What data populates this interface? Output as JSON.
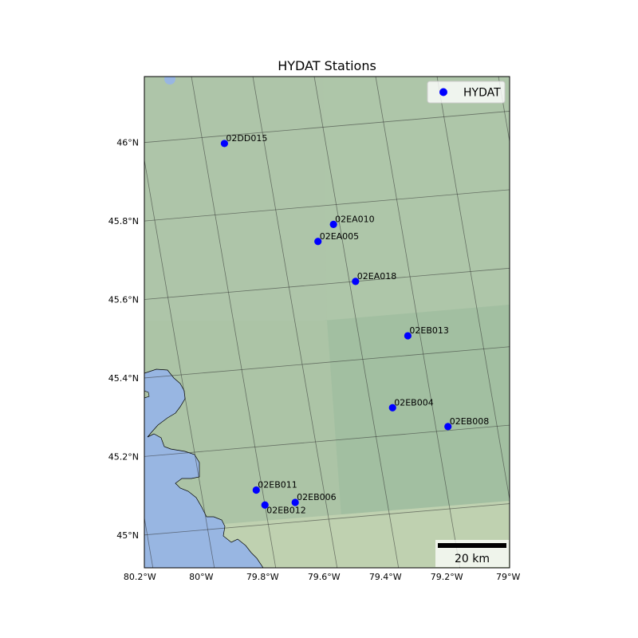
{
  "map": {
    "title": "HYDAT Stations",
    "legend": {
      "label": "HYDAT",
      "marker_color": "#0000ff",
      "position": "top-right"
    },
    "scale_bar": {
      "label": "20 km"
    },
    "lon_ticks": [
      {
        "lon": -80.2,
        "label": "80.2°W"
      },
      {
        "lon": -80.0,
        "label": "80°W"
      },
      {
        "lon": -79.8,
        "label": "79.8°W"
      },
      {
        "lon": -79.6,
        "label": "79.6°W"
      },
      {
        "lon": -79.4,
        "label": "79.4°W"
      },
      {
        "lon": -79.2,
        "label": "79.2°W"
      },
      {
        "lon": -79.0,
        "label": "79°W"
      }
    ],
    "lat_ticks": [
      {
        "lat": 46.0,
        "label": "46°N"
      },
      {
        "lat": 45.8,
        "label": "45.8°N"
      },
      {
        "lat": 45.6,
        "label": "45.6°N"
      },
      {
        "lat": 45.4,
        "label": "45.4°N"
      },
      {
        "lat": 45.2,
        "label": "45.2°N"
      },
      {
        "lat": 45.0,
        "label": "45°N"
      }
    ],
    "colors": {
      "land": "#aec5a9",
      "land_dark": "#a2bfa1",
      "land_light": "#bfd1b0",
      "water": "#98b6e2",
      "gridline": "#2b2b2b",
      "marker": "#0000ff"
    },
    "stations": [
      {
        "id": "02DD015",
        "lon": -79.73,
        "lat": 45.98
      },
      {
        "id": "02EA010",
        "lon": -79.42,
        "lat": 45.75
      },
      {
        "id": "02EA005",
        "lon": -79.48,
        "lat": 45.71
      },
      {
        "id": "02EA018",
        "lon": -79.38,
        "lat": 45.6
      },
      {
        "id": "02EB013",
        "lon": -79.24,
        "lat": 45.45
      },
      {
        "id": "02EB004",
        "lon": -79.33,
        "lat": 45.27
      },
      {
        "id": "02EB008",
        "lon": -79.16,
        "lat": 45.21
      },
      {
        "id": "02EB011",
        "lon": -79.82,
        "lat": 45.09
      },
      {
        "id": "02EB006",
        "lon": -79.7,
        "lat": 45.05
      },
      {
        "id": "02EB012",
        "lon": -79.8,
        "lat": 45.05
      }
    ]
  }
}
